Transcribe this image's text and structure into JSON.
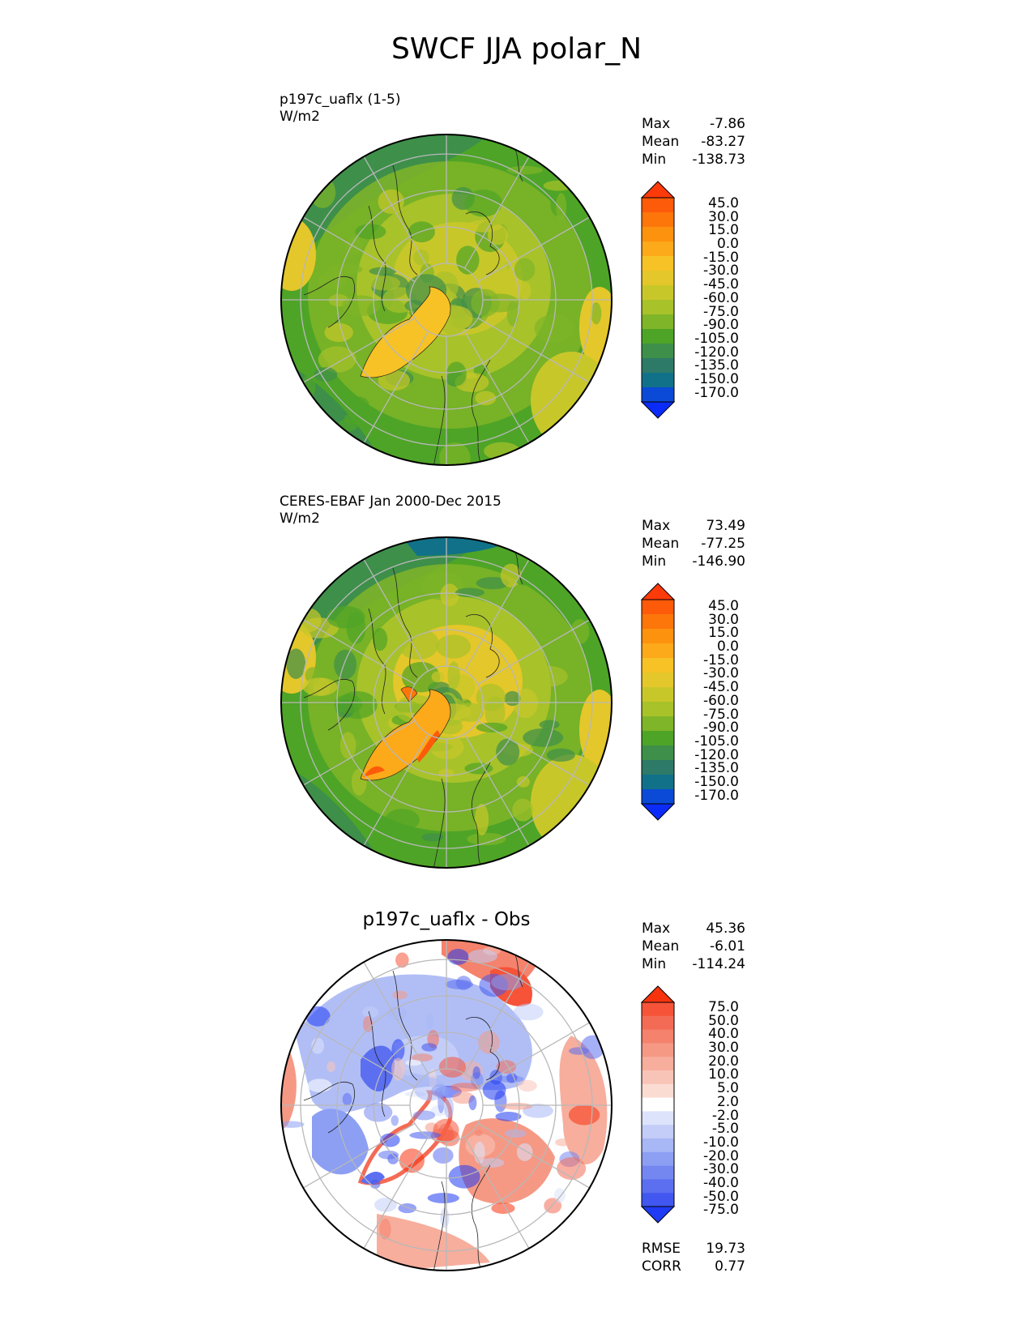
{
  "title": "SWCF JJA polar_N",
  "panels": [
    {
      "id": "test",
      "subtitle_line1": "p197c_uaflx (1-5)",
      "subtitle_line2": "W/m2",
      "center_title": "",
      "stats": {
        "max_label": "Max",
        "max": "-7.86",
        "mean_label": "Mean",
        "mean": "-83.27",
        "min_label": "Min",
        "min": "-138.73"
      },
      "colorbar": {
        "ticks": [
          "45.0",
          "30.0",
          "15.0",
          "0.0",
          "-15.0",
          "-30.0",
          "-45.0",
          "-60.0",
          "-75.0",
          "-90.0",
          "-105.0",
          "-120.0",
          "-135.0",
          "-150.0",
          "-170.0"
        ],
        "colors_top_to_bottom": [
          "#fc3a0a",
          "#fd5a0a",
          "#fd760a",
          "#fd920f",
          "#fca91a",
          "#f7c225",
          "#e4c72a",
          "#c8c72a",
          "#a8c22a",
          "#7fb528",
          "#4ea427",
          "#3e8f4a",
          "#2e7a68",
          "#117189",
          "#0b4ad6",
          "#0b2cf8"
        ]
      },
      "map_field": "model"
    },
    {
      "id": "ref",
      "subtitle_line1": "CERES-EBAF Jan 2000-Dec 2015",
      "subtitle_line2": "W/m2",
      "center_title": "",
      "stats": {
        "max_label": "Max",
        "max": "73.49",
        "mean_label": "Mean",
        "mean": "-77.25",
        "min_label": "Min",
        "min": "-146.90"
      },
      "colorbar": {
        "ticks": [
          "45.0",
          "30.0",
          "15.0",
          "0.0",
          "-15.0",
          "-30.0",
          "-45.0",
          "-60.0",
          "-75.0",
          "-90.0",
          "-105.0",
          "-120.0",
          "-135.0",
          "-150.0",
          "-170.0"
        ],
        "colors_top_to_bottom": [
          "#fc3a0a",
          "#fd5a0a",
          "#fd760a",
          "#fd920f",
          "#fca91a",
          "#f7c225",
          "#e4c72a",
          "#c8c72a",
          "#a8c22a",
          "#7fb528",
          "#4ea427",
          "#3e8f4a",
          "#2e7a68",
          "#117189",
          "#0b4ad6",
          "#0b2cf8"
        ]
      },
      "map_field": "obs"
    },
    {
      "id": "diff",
      "subtitle_line1": "",
      "subtitle_line2": "",
      "center_title": "p197c_uaflx - Obs",
      "stats": {
        "max_label": "Max",
        "max": "45.36",
        "mean_label": "Mean",
        "mean": "-6.01",
        "min_label": "Min",
        "min": "-114.24"
      },
      "colorbar": {
        "ticks": [
          "75.0",
          "50.0",
          "40.0",
          "30.0",
          "20.0",
          "10.0",
          "5.0",
          "2.0",
          "-2.0",
          "-5.0",
          "-10.0",
          "-20.0",
          "-30.0",
          "-40.0",
          "-50.0",
          "-75.0"
        ],
        "colors_top_to_bottom": [
          "#f7330e",
          "#f65339",
          "#f46b55",
          "#f4826c",
          "#f59985",
          "#f7ae9d",
          "#f9c4b8",
          "#fbdcd3",
          "#ffffff",
          "#dde3fb",
          "#c3cdf8",
          "#a8b7f5",
          "#8c9ff3",
          "#7487f1",
          "#5c6ff0",
          "#4157ef",
          "#1f3bf3"
        ]
      },
      "metrics": {
        "rmse_label": "RMSE",
        "rmse": "19.73",
        "corr_label": "CORR",
        "corr": "0.77"
      },
      "map_field": "diff"
    }
  ]
}
